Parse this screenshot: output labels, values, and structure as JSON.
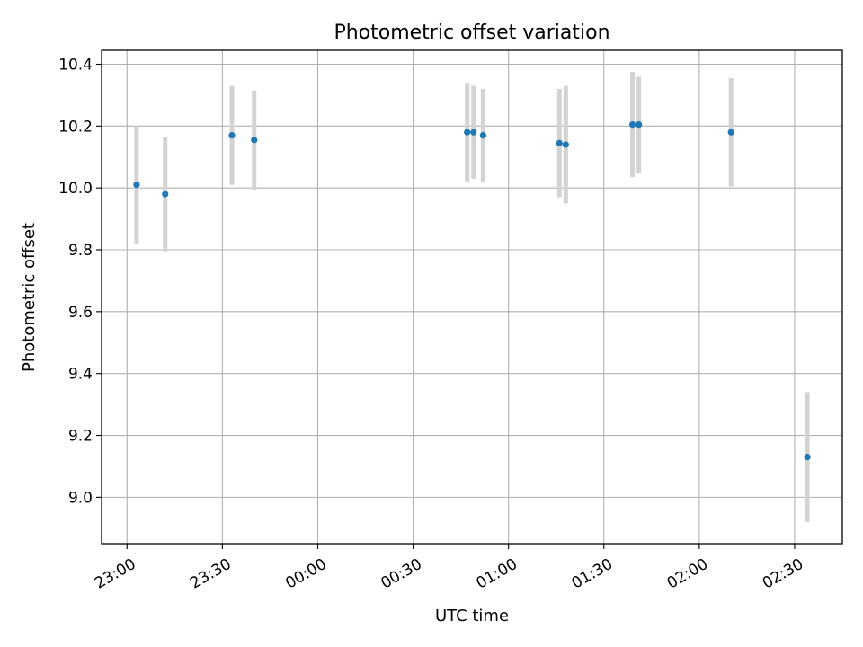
{
  "chart_data": {
    "type": "scatter",
    "title": "Photometric offset variation",
    "xlabel": "UTC time",
    "ylabel": "Photometric offset",
    "x_tick_labels": [
      "23:00",
      "23:30",
      "00:00",
      "00:30",
      "01:00",
      "01:30",
      "02:00",
      "02:30"
    ],
    "x_tick_minutes": [
      0,
      30,
      60,
      90,
      120,
      150,
      180,
      210
    ],
    "xlim_minutes": [
      -8,
      225
    ],
    "x_origin_time": "23:00",
    "y_ticks": [
      9.0,
      9.2,
      9.4,
      9.6,
      9.8,
      10.0,
      10.2,
      10.4
    ],
    "y_tick_labels": [
      "9.0",
      "9.2",
      "9.4",
      "9.6",
      "9.8",
      "10.0",
      "10.2",
      "10.4"
    ],
    "ylim": [
      8.85,
      10.445
    ],
    "grid": true,
    "series": [
      {
        "marker_color": "#1f77b4",
        "errorbar_color": "#d3d3d3",
        "points": [
          {
            "time": "23:03",
            "y": 10.01,
            "err": 0.19
          },
          {
            "time": "23:12",
            "y": 9.98,
            "err": 0.185
          },
          {
            "time": "23:33",
            "y": 10.17,
            "err": 0.16
          },
          {
            "time": "23:40",
            "y": 10.155,
            "err": 0.16
          },
          {
            "time": "00:47",
            "y": 10.18,
            "err": 0.16
          },
          {
            "time": "00:49",
            "y": 10.18,
            "err": 0.15
          },
          {
            "time": "00:52",
            "y": 10.17,
            "err": 0.15
          },
          {
            "time": "01:16",
            "y": 10.145,
            "err": 0.175
          },
          {
            "time": "01:18",
            "y": 10.14,
            "err": 0.19
          },
          {
            "time": "01:39",
            "y": 10.205,
            "err": 0.17
          },
          {
            "time": "01:41",
            "y": 10.205,
            "err": 0.155
          },
          {
            "time": "02:10",
            "y": 10.18,
            "err": 0.175
          },
          {
            "time": "02:34",
            "y": 9.13,
            "err": 0.21
          }
        ]
      }
    ]
  }
}
